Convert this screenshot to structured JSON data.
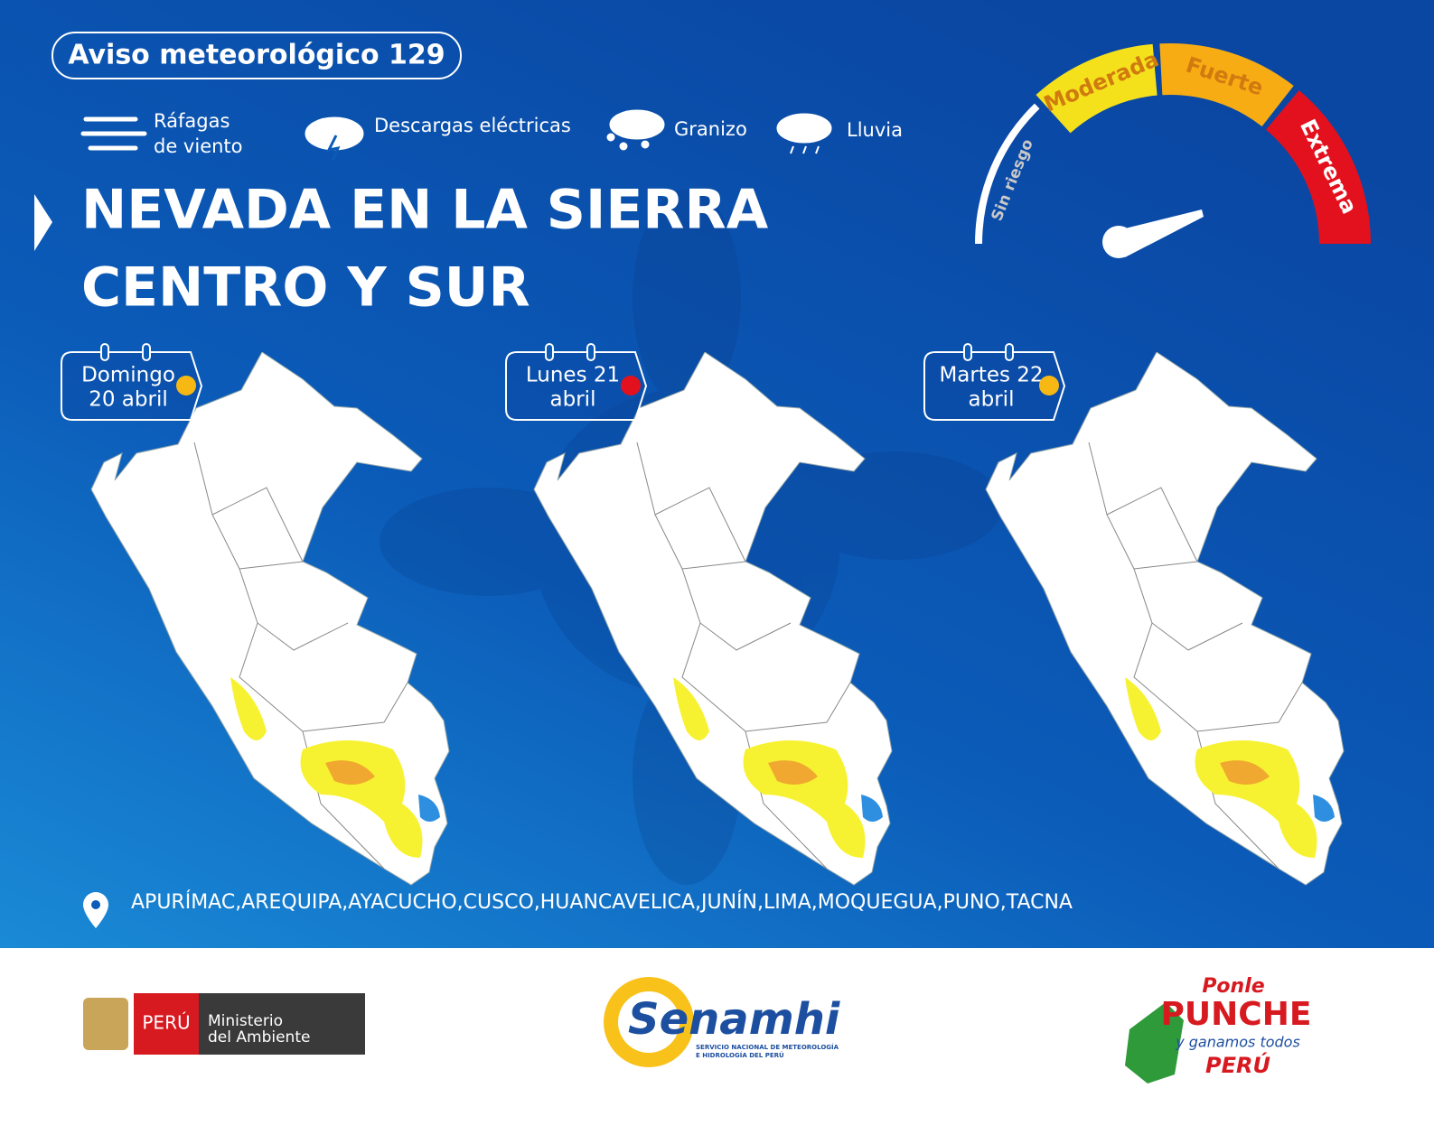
{
  "header": {
    "title": "Aviso meteorológico 129"
  },
  "hazards": [
    {
      "lines": [
        "Ráfagas",
        "de viento"
      ]
    },
    {
      "lines": [
        "Descargas eléctricas"
      ]
    },
    {
      "lines": [
        "Granizo"
      ]
    },
    {
      "lines": [
        "Lluvia"
      ]
    }
  ],
  "headline": [
    "NEVADA EN LA SIERRA",
    "CENTRO Y SUR"
  ],
  "gauge": {
    "levels": [
      {
        "label": "Sin riesgo",
        "color": "#ffffff"
      },
      {
        "label": "Moderada",
        "color": "#f4e11c"
      },
      {
        "label": "Fuerte",
        "color": "#f8ac14"
      },
      {
        "label": "Extrema",
        "color": "#e3111d"
      }
    ]
  },
  "days": [
    {
      "lines": [
        "Domingo",
        "20  abril"
      ],
      "color": "#f8b814"
    },
    {
      "lines": [
        "Lunes 21",
        "abril"
      ],
      "color": "#e3111d"
    },
    {
      "lines": [
        "Martes 22",
        "abril"
      ],
      "color": "#f8b814"
    }
  ],
  "regions": "APURÍMAC,AREQUIPA,AYACUCHO,CUSCO,HUANCAVELICA,JUNÍN,LIMA,MOQUEGUA,PUNO,TACNA",
  "footer": {
    "ministry": {
      "country": "PERÚ",
      "lines": [
        "Ministerio",
        "del Ambiente"
      ]
    },
    "senamhi": {
      "name": "Senamhi",
      "lines": [
        "SERVICIO NACIONAL DE METEOROLOGÍA",
        "E HIDROLOGÍA DEL PERÚ"
      ]
    },
    "campaign": {
      "lines": [
        "Ponle",
        "PUNCHE",
        "y ganamos todos",
        "PERÚ"
      ]
    }
  }
}
